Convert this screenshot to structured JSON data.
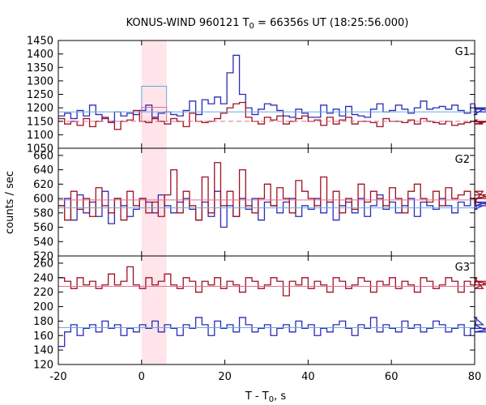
{
  "title": {
    "prefix": "KONUS-WIND 960121 T",
    "sub": "0",
    "suffix": " = 66356s UT (18:25:56.000)"
  },
  "xlabel": {
    "prefix": "T - T",
    "sub": "0",
    "suffix": ", s"
  },
  "ylabel": "counts / sec",
  "colors": {
    "histA": "#2b2bb8",
    "histB": "#a01020",
    "bgA": "#66aadd",
    "bgB": "#e07090",
    "highlight": "#ffe4ea"
  },
  "chart_data": {
    "type": "line",
    "title": "KONUS-WIND 960121 T0 = 66356s UT (18:25:56.000)",
    "xlabel": "T - T0, s",
    "ylabel": "counts / sec",
    "xlim": [
      -20,
      80
    ],
    "xticks": [
      -20,
      0,
      20,
      40,
      60,
      80
    ],
    "bin_width": 1.5,
    "bin_start": -20,
    "highlight_interval": [
      0,
      6
    ],
    "panels": [
      {
        "name": "G1",
        "ylim": [
          1050,
          1450
        ],
        "yticks": [
          1050,
          1100,
          1150,
          1200,
          1250,
          1300,
          1350,
          1400,
          1450
        ],
        "series": [
          {
            "color_key": "histA",
            "values": [
              1170,
              1180,
              1160,
              1190,
              1170,
              1210,
              1175,
              1160,
              1150,
              1185,
              1170,
              1180,
              1175,
              1190,
              1210,
              1165,
              1180,
              1185,
              1175,
              1170,
              1190,
              1225,
              1175,
              1230,
              1215,
              1240,
              1215,
              1330,
              1395,
              1250,
              1200,
              1175,
              1195,
              1215,
              1210,
              1190,
              1170,
              1165,
              1195,
              1180,
              1165,
              1165,
              1210,
              1180,
              1195,
              1170,
              1205,
              1175,
              1170,
              1165,
              1195,
              1215,
              1185,
              1190,
              1210,
              1195,
              1180,
              1200,
              1225,
              1195,
              1200,
              1205,
              1195,
              1210,
              1190,
              1180,
              1215,
              1175,
              1195,
              1200,
              1185
            ]
          },
          {
            "color_key": "histB",
            "values": [
              1160,
              1140,
              1150,
              1135,
              1160,
              1130,
              1150,
              1165,
              1145,
              1120,
              1150,
              1155,
              1190,
              1150,
              1145,
              1160,
              1150,
              1140,
              1160,
              1150,
              1130,
              1180,
              1150,
              1145,
              1150,
              1160,
              1180,
              1200,
              1215,
              1220,
              1165,
              1150,
              1140,
              1165,
              1155,
              1170,
              1140,
              1150,
              1160,
              1170,
              1150,
              1155,
              1135,
              1165,
              1140,
              1155,
              1165,
              1140,
              1150,
              1150,
              1145,
              1130,
              1160,
              1150,
              1150,
              1145,
              1155,
              1140,
              1160,
              1150,
              1145,
              1140,
              1150,
              1135,
              1140,
              1145,
              1150,
              1155,
              1140,
              1150,
              1148
            ]
          },
          {
            "color_key": "bgA",
            "style": "background",
            "value": 1185,
            "burst_level": 1280
          },
          {
            "color_key": "bgB",
            "style": "background-dashed",
            "value": 1150,
            "burst_level": 1202
          }
        ]
      },
      {
        "name": "G2",
        "ylim": [
          520,
          670
        ],
        "yticks": [
          520,
          540,
          560,
          580,
          600,
          620,
          640,
          660
        ],
        "series": [
          {
            "color_key": "histA",
            "values": [
              590,
              600,
              570,
              605,
              580,
              595,
              575,
              610,
              565,
              600,
              590,
              575,
              585,
              600,
              595,
              580,
              605,
              590,
              580,
              595,
              600,
              585,
              570,
              595,
              575,
              610,
              560,
              590,
              575,
              600,
              585,
              600,
              570,
              595,
              590,
              580,
              595,
              600,
              575,
              590,
              585,
              600,
              580,
              595,
              570,
              590,
              595,
              580,
              600,
              575,
              590,
              605,
              585,
              595,
              580,
              590,
              600,
              575,
              595,
              590,
              585,
              600,
              590,
              580,
              595,
              590,
              600,
              585,
              590,
              595,
              590
            ]
          },
          {
            "color_key": "histB",
            "values": [
              590,
              570,
              610,
              585,
              600,
              575,
              615,
              590,
              580,
              600,
              570,
              610,
              590,
              600,
              580,
              595,
              575,
              605,
              640,
              580,
              610,
              590,
              570,
              630,
              580,
              650,
              590,
              610,
              575,
              640,
              590,
              580,
              600,
              620,
              590,
              615,
              600,
              580,
              625,
              610,
              600,
              590,
              630,
              595,
              610,
              580,
              600,
              585,
              620,
              595,
              610,
              600,
              590,
              615,
              600,
              580,
              610,
              620,
              600,
              595,
              610,
              590,
              615,
              600,
              605,
              610,
              600,
              595,
              610,
              600,
              605
            ]
          },
          {
            "color_key": "bgA",
            "style": "background",
            "value": 587
          },
          {
            "color_key": "bgB",
            "style": "background",
            "value": 598
          }
        ]
      },
      {
        "name": "G3",
        "ylim": [
          120,
          270
        ],
        "yticks": [
          120,
          140,
          160,
          180,
          200,
          220,
          240,
          260
        ],
        "series": [
          {
            "color_key": "histA",
            "values": [
              145,
              165,
              175,
              160,
              170,
              175,
              165,
              180,
              170,
              175,
              160,
              170,
              165,
              175,
              170,
              180,
              165,
              175,
              170,
              160,
              175,
              170,
              185,
              175,
              160,
              180,
              170,
              175,
              165,
              185,
              175,
              165,
              170,
              175,
              160,
              170,
              175,
              165,
              180,
              170,
              175,
              160,
              170,
              165,
              175,
              180,
              170,
              160,
              175,
              170,
              185,
              165,
              175,
              170,
              165,
              180,
              170,
              175,
              165,
              170,
              180,
              175,
              165,
              170,
              175,
              160,
              170,
              185,
              175,
              165,
              170
            ]
          },
          {
            "color_key": "histB",
            "values": [
              240,
              235,
              225,
              240,
              230,
              235,
              225,
              230,
              245,
              230,
              235,
              255,
              230,
              225,
              240,
              230,
              235,
              245,
              230,
              225,
              240,
              235,
              220,
              235,
              230,
              240,
              225,
              235,
              230,
              220,
              240,
              235,
              225,
              230,
              240,
              235,
              215,
              235,
              230,
              240,
              225,
              235,
              230,
              220,
              240,
              235,
              225,
              230,
              240,
              235,
              220,
              235,
              230,
              240,
              225,
              235,
              230,
              220,
              240,
              235,
              225,
              230,
              240,
              235,
              220,
              235,
              230,
              240,
              225,
              235,
              230
            ]
          },
          {
            "color_key": "bgA",
            "style": "background",
            "value": 171
          },
          {
            "color_key": "bgB",
            "style": "background",
            "value": 228
          }
        ]
      }
    ]
  }
}
